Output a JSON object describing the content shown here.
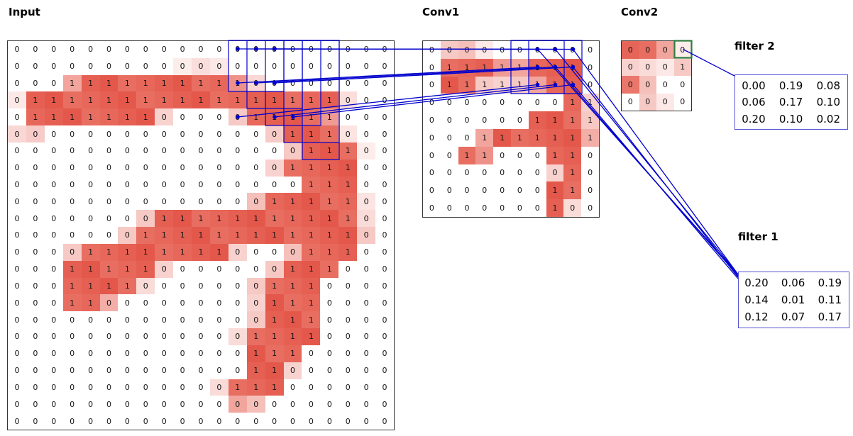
{
  "colors": {
    "accent_blue": "#0000cd",
    "cell_red": "#e24a3b",
    "highlight_green": "#2f7d3f",
    "filter_border": "#5555d5",
    "grid_border": "#333333",
    "text": "#141414"
  },
  "panels": {
    "input": {
      "title": "Input",
      "rows": [
        "000000000000000000000",
        "000000000000000000000",
        "000111111111100000000",
        "011111111111111111000",
        "011111110000011111000",
        "000000000000000111000",
        "000000000000000011100",
        "000000000000000111100",
        "000000000000000011100",
        "000000000000001111100",
        "000000001111111111100",
        "000000011111111111100",
        "000011111111000011100",
        "000111110000000111000",
        "000111100000001110000",
        "000110000000001110000",
        "000000000000001110000",
        "000000000000011110000",
        "000000000000011100000",
        "000000000000011000000",
        "000000000000111000000",
        "000000000000000000000",
        "000000000000000000000"
      ],
      "overrides": [
        [
          1,
          9,
          0.1
        ],
        [
          1,
          10,
          0.18
        ],
        [
          1,
          11,
          0.12
        ],
        [
          2,
          3,
          0.5
        ],
        [
          2,
          12,
          0.6
        ],
        [
          2,
          13,
          0.22
        ],
        [
          3,
          0,
          0.12
        ],
        [
          3,
          18,
          0.18
        ],
        [
          4,
          8,
          0.25
        ],
        [
          4,
          12,
          0.3
        ],
        [
          4,
          17,
          0.55
        ],
        [
          5,
          0,
          0.22
        ],
        [
          5,
          1,
          0.28
        ],
        [
          5,
          14,
          0.28
        ],
        [
          5,
          18,
          0.15
        ],
        [
          6,
          15,
          0.3
        ],
        [
          6,
          19,
          0.1
        ],
        [
          7,
          14,
          0.25
        ],
        [
          9,
          13,
          0.35
        ],
        [
          9,
          19,
          0.15
        ],
        [
          10,
          7,
          0.3
        ],
        [
          10,
          19,
          0.2
        ],
        [
          11,
          6,
          0.3
        ],
        [
          11,
          19,
          0.3
        ],
        [
          12,
          3,
          0.3
        ],
        [
          12,
          12,
          0.25
        ],
        [
          12,
          15,
          0.35
        ],
        [
          13,
          8,
          0.25
        ],
        [
          13,
          14,
          0.3
        ],
        [
          14,
          7,
          0.2
        ],
        [
          14,
          13,
          0.3
        ],
        [
          15,
          5,
          0.45
        ],
        [
          15,
          13,
          0.25
        ],
        [
          16,
          13,
          0.3
        ],
        [
          17,
          12,
          0.2
        ],
        [
          19,
          15,
          0.25
        ],
        [
          20,
          11,
          0.2
        ],
        [
          21,
          12,
          0.5
        ],
        [
          21,
          13,
          0.35
        ]
      ]
    },
    "conv1": {
      "title": "Conv1",
      "rows": [
        "0000000000",
        "0111111110",
        "0111111110",
        "0000000011",
        "0000001111",
        "0001111111",
        "0011000110",
        "0000000010",
        "0000000110",
        "0000000100"
      ],
      "overrides": [
        [
          0,
          1,
          0.3
        ],
        [
          0,
          2,
          0.35
        ],
        [
          0,
          3,
          0.12
        ],
        [
          1,
          4,
          0.55
        ],
        [
          1,
          5,
          0.5
        ],
        [
          2,
          3,
          0.3
        ],
        [
          2,
          4,
          0.25
        ],
        [
          2,
          5,
          0.3
        ],
        [
          2,
          6,
          0.5
        ],
        [
          3,
          9,
          0.25
        ],
        [
          4,
          9,
          0.3
        ],
        [
          5,
          3,
          0.5
        ],
        [
          5,
          9,
          0.45
        ],
        [
          6,
          3,
          0.6
        ],
        [
          7,
          7,
          0.25
        ],
        [
          9,
          8,
          0.2
        ]
      ]
    },
    "conv2": {
      "title": "Conv2",
      "rows": [
        "0000",
        "0001",
        "0000",
        "0000"
      ],
      "overrides": [
        [
          0,
          0,
          0.85
        ],
        [
          0,
          1,
          0.8
        ],
        [
          0,
          2,
          0.5
        ],
        [
          0,
          3,
          0.1
        ],
        [
          1,
          0,
          0.25
        ],
        [
          1,
          1,
          0.2
        ],
        [
          1,
          2,
          0.12
        ],
        [
          1,
          3,
          0.3
        ],
        [
          2,
          0,
          0.75
        ],
        [
          2,
          1,
          0.35
        ],
        [
          3,
          1,
          0.3
        ],
        [
          3,
          2,
          0.12
        ]
      ]
    },
    "filter2": {
      "title": "filter 2",
      "values": [
        [
          "0.00",
          "0.19",
          "0.08"
        ],
        [
          "0.06",
          "0.17",
          "0.10"
        ],
        [
          "0.20",
          "0.10",
          "0.02"
        ]
      ]
    },
    "filter1": {
      "title": "filter 1",
      "values": [
        [
          "0.20",
          "0.06",
          "0.19"
        ],
        [
          "0.14",
          "0.01",
          "0.11"
        ],
        [
          "0.12",
          "0.07",
          "0.17"
        ]
      ]
    }
  }
}
